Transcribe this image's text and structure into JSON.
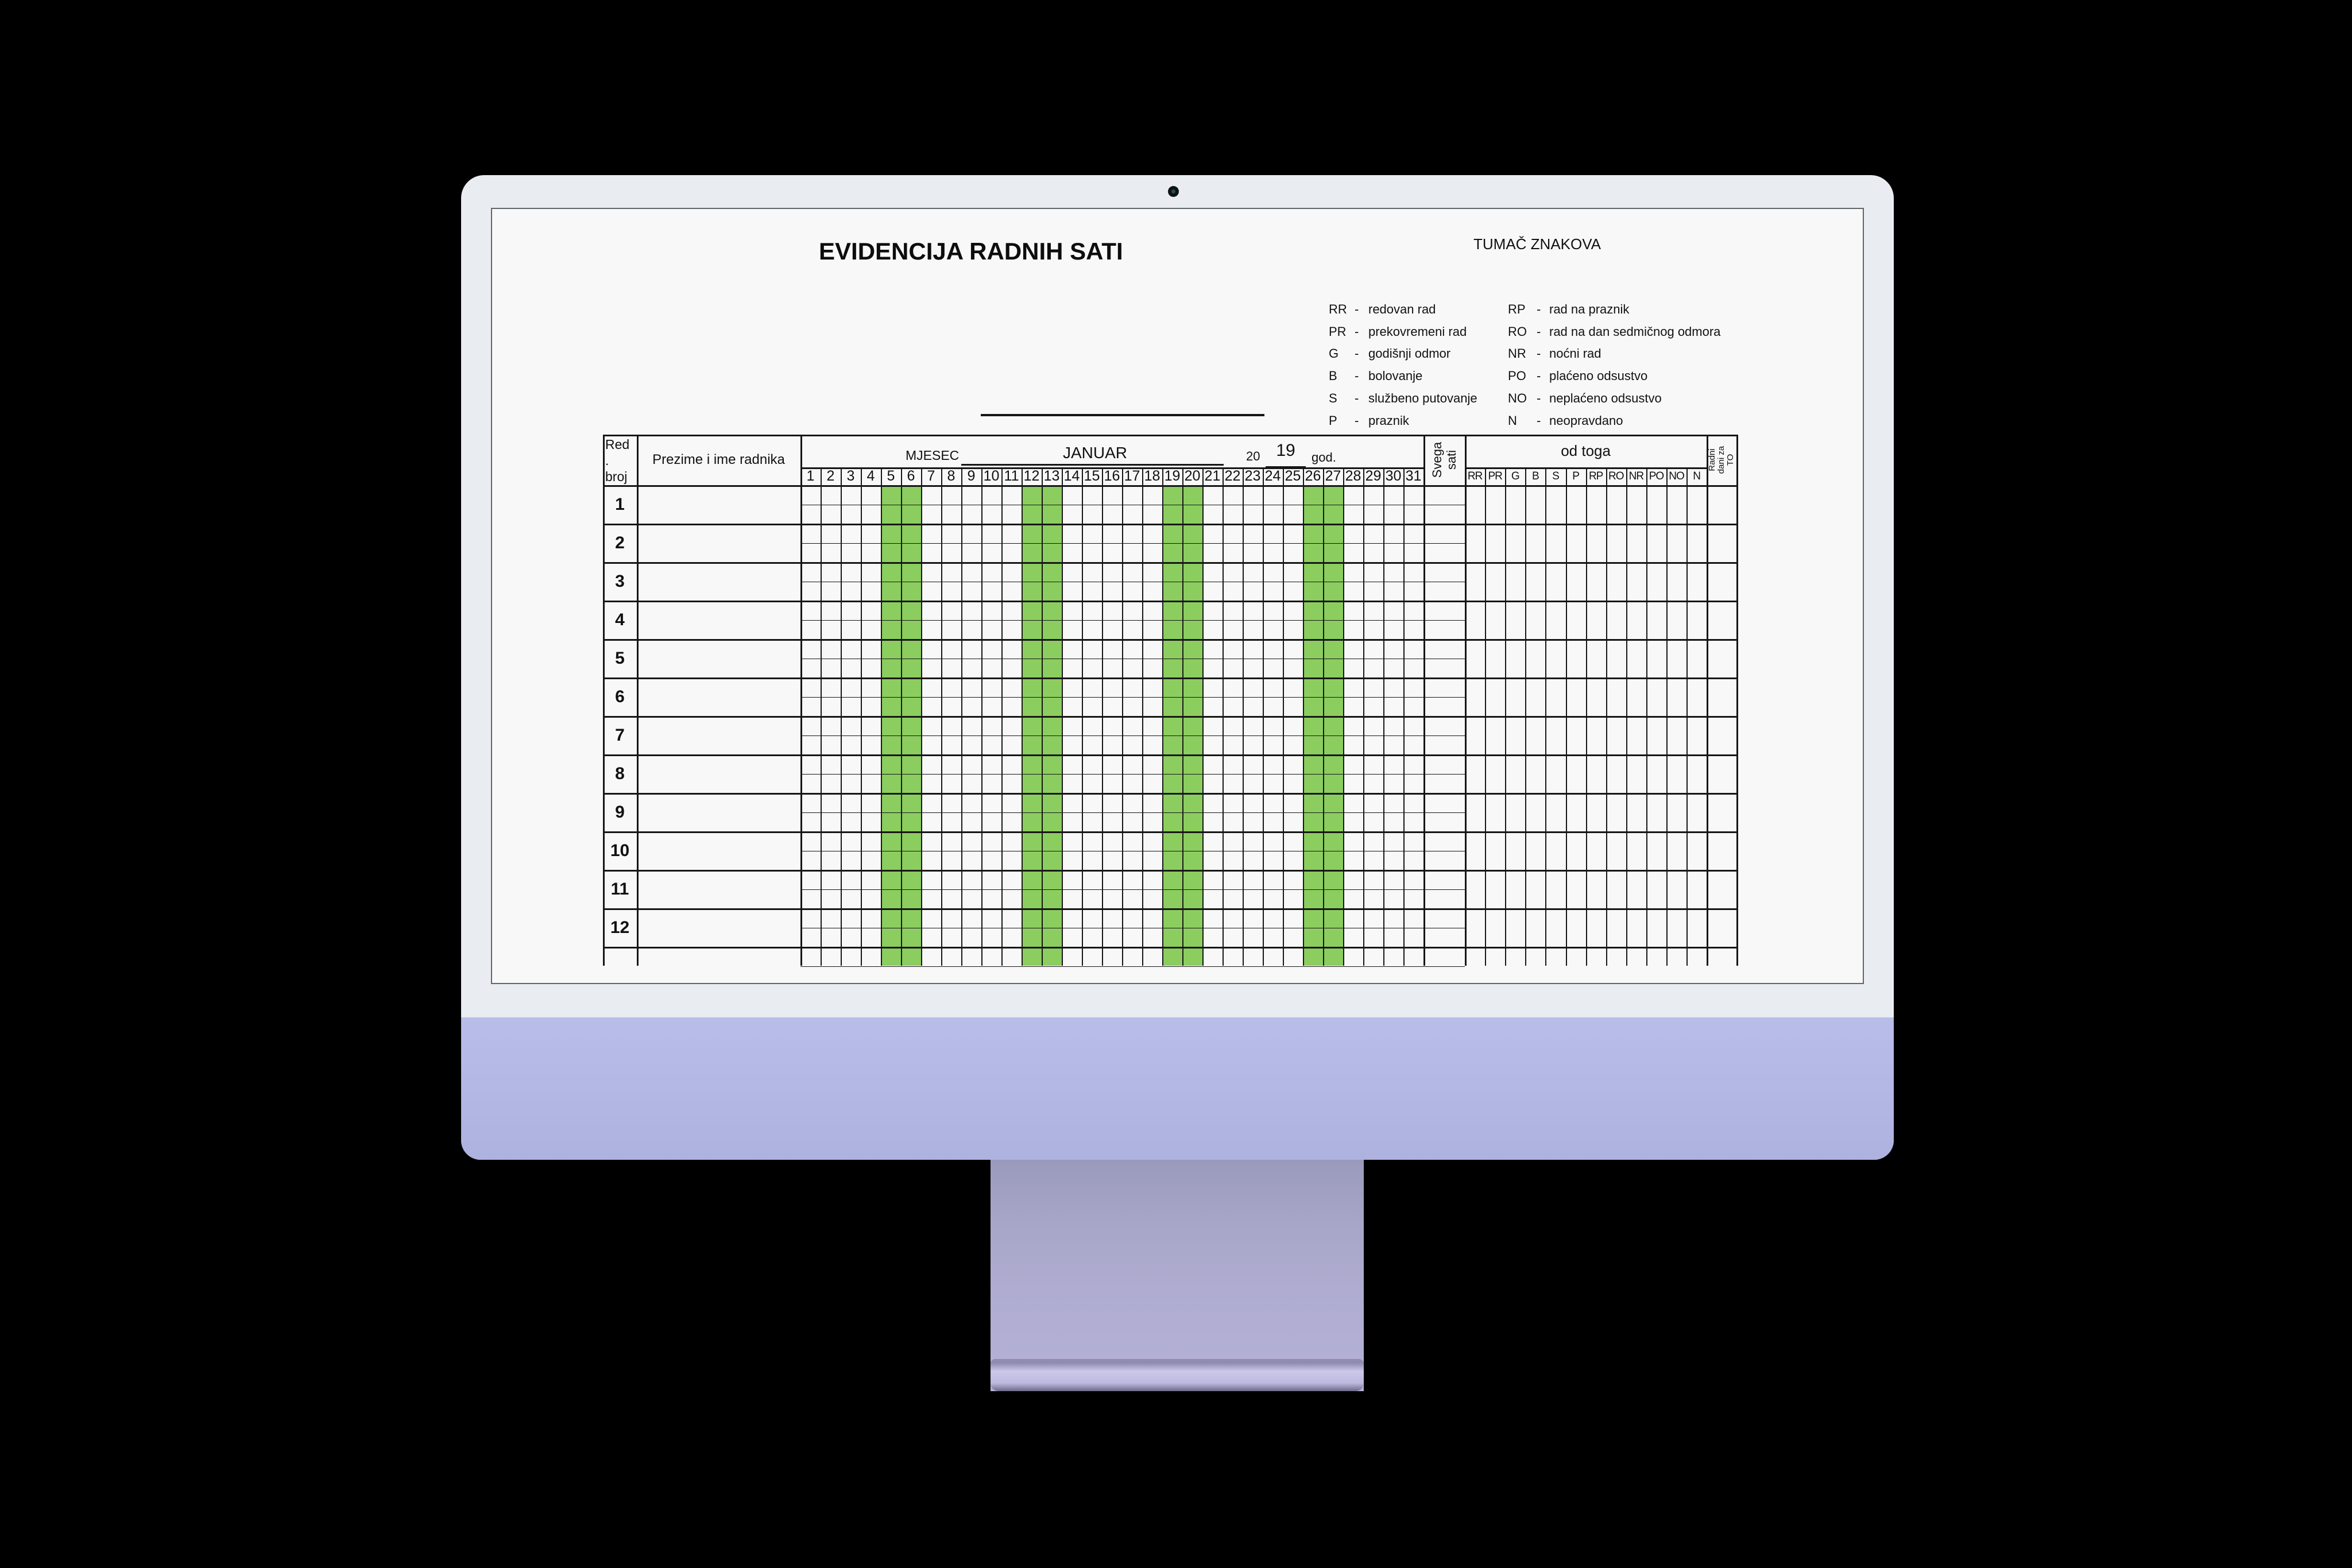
{
  "screen": {
    "document": {
      "title": "EVIDENCIJA RADNIH SATI",
      "legend": {
        "heading": "TUMAČ ZNAKOVA",
        "separator": "-",
        "left": [
          {
            "abbr": "RR",
            "desc": "redovan rad"
          },
          {
            "abbr": "PR",
            "desc": "prekovremeni rad"
          },
          {
            "abbr": "G",
            "desc": "godišnji odmor"
          },
          {
            "abbr": "B",
            "desc": "bolovanje"
          },
          {
            "abbr": "S",
            "desc": "službeno putovanje"
          },
          {
            "abbr": "P",
            "desc": "praznik"
          }
        ],
        "right": [
          {
            "abbr": "RP",
            "desc": "rad na praznik"
          },
          {
            "abbr": "RO",
            "desc": "rad na dan sedmičnog odmora"
          },
          {
            "abbr": "NR",
            "desc": "noćni rad"
          },
          {
            "abbr": "PO",
            "desc": "plaćeno odsustvo"
          },
          {
            "abbr": "NO",
            "desc": "neplaćeno odsustvo"
          },
          {
            "abbr": "N",
            "desc": "neopravdano"
          }
        ]
      },
      "table": {
        "row_number_header_lines": [
          "Red",
          ".",
          "broj"
        ],
        "employee_header": "Prezime i ime radnika",
        "month_label": "MJESEC",
        "month_value": "JANUAR",
        "year_prefix": "20",
        "year_value": "19",
        "year_suffix": "god.",
        "days": [
          1,
          2,
          3,
          4,
          5,
          6,
          7,
          8,
          9,
          10,
          11,
          12,
          13,
          14,
          15,
          16,
          17,
          18,
          19,
          20,
          21,
          22,
          23,
          24,
          25,
          26,
          27,
          28,
          29,
          30,
          31
        ],
        "weekend_days": [
          5,
          6,
          12,
          13,
          19,
          20,
          26,
          27
        ],
        "total_hours_header_lines": [
          "Svega",
          "sati"
        ],
        "of_that_header": "od toga",
        "sub_columns": [
          "RR",
          "PR",
          "G",
          "B",
          "S",
          "P",
          "RP",
          "RO",
          "NR",
          "PO",
          "NO",
          "N"
        ],
        "working_days_header_lines": [
          "Radni",
          "dani za",
          "TO"
        ],
        "row_numbers": [
          1,
          2,
          3,
          4,
          5,
          6,
          7,
          8,
          9,
          10,
          11,
          12
        ]
      }
    }
  },
  "colors": {
    "weekend_highlight": "#8ccd5f",
    "grid_line": "#161616",
    "chin": "#b3b7e3",
    "bezel": "#e9ecf1",
    "stand": "#aeaacd"
  }
}
